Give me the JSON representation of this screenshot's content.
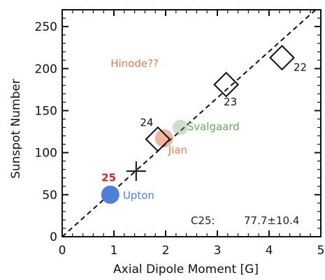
{
  "chart_data": {
    "type": "scatter",
    "xlabel": "Axial Dipole Moment [G]",
    "ylabel": "Sunspot Number",
    "xlim": [
      0,
      5
    ],
    "ylim": [
      0,
      270
    ],
    "xticks": [
      0,
      1,
      2,
      3,
      4,
      5
    ],
    "yticks": [
      0,
      50,
      100,
      150,
      200,
      250
    ],
    "grid": false,
    "diamond_points": [
      {
        "label": "22",
        "x": 4.25,
        "y": 213
      },
      {
        "label": "23",
        "x": 3.17,
        "y": 181
      },
      {
        "label": "24",
        "x": 1.85,
        "y": 116
      }
    ],
    "cross_point": {
      "x": 1.43,
      "y": 78
    },
    "prediction_points": [
      {
        "label": "Upton",
        "x": 0.93,
        "y": 50,
        "color": "#4f7fd8"
      },
      {
        "label": "Jian",
        "x": 1.97,
        "y": 117,
        "color": "#e07b55"
      },
      {
        "label": "Svalgaard",
        "x": 2.28,
        "y": 130,
        "color": "#6aa564"
      }
    ],
    "fit_line": {
      "slope": 55.5,
      "style": "dashed",
      "x_range": [
        0,
        4.9
      ]
    },
    "annotations": {
      "hinode": {
        "text": "Hinode??",
        "x": 1.4,
        "y": 202,
        "color": "#e07b55"
      },
      "cycle25": {
        "text": "25",
        "x": 0.9,
        "y": 66,
        "color": "#e02020"
      },
      "c25": {
        "text": "C25:",
        "x": 2.72,
        "y": 15
      },
      "prediction": {
        "text": "77.7±10.4",
        "x": 4.05,
        "y": 15
      }
    }
  }
}
